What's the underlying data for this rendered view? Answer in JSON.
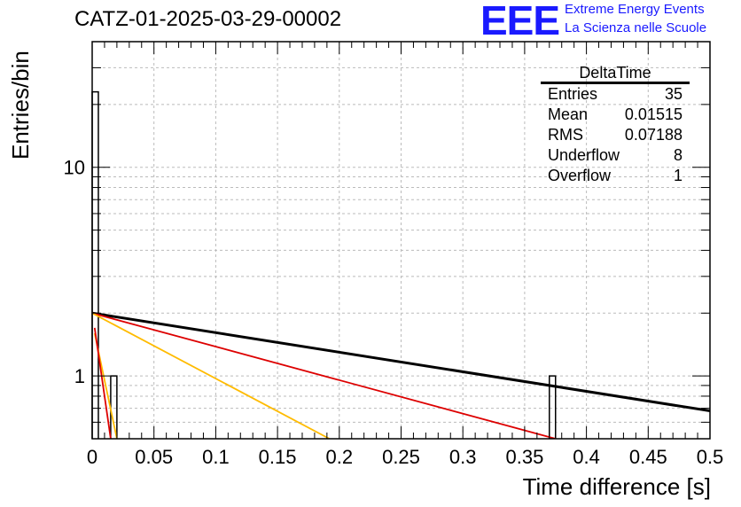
{
  "chart_data": {
    "type": "histogram",
    "title": "CATZ-01-2025-03-29-00002",
    "xlabel": "Time difference [s]",
    "ylabel": "Entries/bin",
    "xlim": [
      0,
      0.5
    ],
    "ylim": [
      0.5,
      40
    ],
    "yscale": "log",
    "grid": true,
    "x_ticks": [
      "0",
      "0.05",
      "0.1",
      "0.15",
      "0.2",
      "0.25",
      "0.3",
      "0.35",
      "0.4",
      "0.45",
      "0.5"
    ],
    "y_ticks": [
      "1",
      "10"
    ],
    "bins": [
      {
        "x0": 0.0,
        "x1": 0.005,
        "y": 23
      },
      {
        "x0": 0.015,
        "x1": 0.02,
        "y": 1
      },
      {
        "x0": 0.37,
        "x1": 0.375,
        "y": 1
      }
    ],
    "curves": [
      {
        "color": "#000000",
        "x": [
          0,
          0.5
        ],
        "y": [
          2.0,
          0.68
        ]
      },
      {
        "color": "#dd0000",
        "x": [
          0,
          0.375
        ],
        "y": [
          2.0,
          0.5
        ]
      },
      {
        "color": "#ffbb00",
        "x": [
          0,
          0.192
        ],
        "y": [
          2.0,
          0.5
        ]
      },
      {
        "color": "#ffbb00",
        "x": [
          0.002,
          0.02
        ],
        "y": [
          1.6,
          0.5
        ]
      },
      {
        "color": "#dd0000",
        "x": [
          0.002,
          0.015
        ],
        "y": [
          1.7,
          0.5
        ]
      }
    ]
  },
  "header": {
    "logo": "EEE",
    "tagline1": "Extreme Energy Events",
    "tagline2": "La Scienza nelle Scuole"
  },
  "stats": {
    "title": "DeltaTime",
    "rows": [
      {
        "label": "Entries",
        "value": "35"
      },
      {
        "label": "Mean",
        "value": "0.01515"
      },
      {
        "label": "RMS",
        "value": "0.07188"
      },
      {
        "label": "Underflow",
        "value": "8"
      },
      {
        "label": "Overflow",
        "value": "1"
      }
    ]
  },
  "colors": {
    "axis": "#000000",
    "grid": "#bbbbbb",
    "logo": "#1a1aff"
  }
}
